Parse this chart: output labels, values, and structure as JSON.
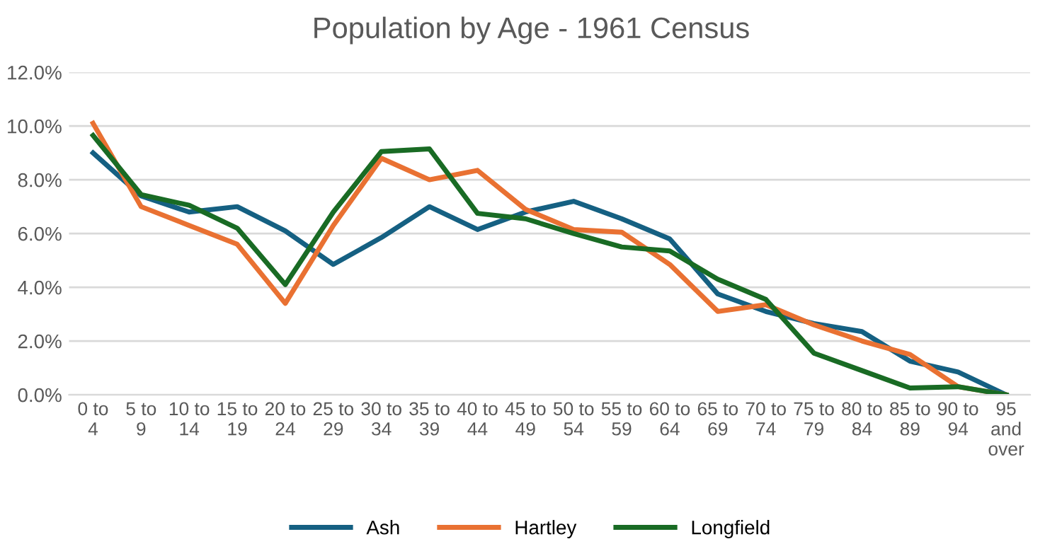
{
  "chart_data": {
    "type": "line",
    "title": "Population by Age - 1961 Census",
    "categories": [
      "0 to\n4",
      "5 to\n9",
      "10 to\n14",
      "15 to\n19",
      "20 to\n24",
      "25 to\n29",
      "30 to\n34",
      "35 to\n39",
      "40 to\n44",
      "45 to\n49",
      "50 to\n54",
      "55 to\n59",
      "60 to\n64",
      "65 to\n69",
      "70 to\n74",
      "75 to\n79",
      "80 to\n84",
      "85 to\n89",
      "90 to\n94",
      "95\nand\nover"
    ],
    "series": [
      {
        "name": "Ash",
        "color": "#156082",
        "values": [
          9.0,
          7.4,
          6.8,
          7.0,
          6.1,
          4.85,
          5.85,
          7.0,
          6.15,
          6.8,
          7.2,
          6.55,
          5.8,
          3.75,
          3.1,
          2.65,
          2.35,
          1.25,
          0.85,
          0
        ]
      },
      {
        "name": "Hartley",
        "color": "#e97132",
        "values": [
          10.1,
          7.0,
          6.3,
          5.6,
          3.4,
          6.3,
          8.8,
          8.0,
          8.35,
          6.9,
          6.15,
          6.05,
          4.85,
          3.1,
          3.35,
          2.6,
          2.0,
          1.5,
          0.3,
          0
        ]
      },
      {
        "name": "Longfield",
        "color": "#196b24",
        "values": [
          9.65,
          7.45,
          7.05,
          6.2,
          4.1,
          6.8,
          9.05,
          9.15,
          6.75,
          6.55,
          6.0,
          5.5,
          5.35,
          4.3,
          3.55,
          1.55,
          0.9,
          0.25,
          0.3,
          0
        ]
      }
    ],
    "ylim": [
      0,
      12
    ],
    "yticks": [
      {
        "value": 0,
        "label": "0.0%"
      },
      {
        "value": 2,
        "label": "2.0%"
      },
      {
        "value": 4,
        "label": "4.0%"
      },
      {
        "value": 6,
        "label": "6.0%"
      },
      {
        "value": 8,
        "label": "8.0%"
      },
      {
        "value": 10,
        "label": "10.0%"
      },
      {
        "value": 12,
        "label": "12.0%"
      }
    ],
    "grid": "y",
    "legend": "bottom",
    "marker": "none",
    "line_style": "solid"
  }
}
